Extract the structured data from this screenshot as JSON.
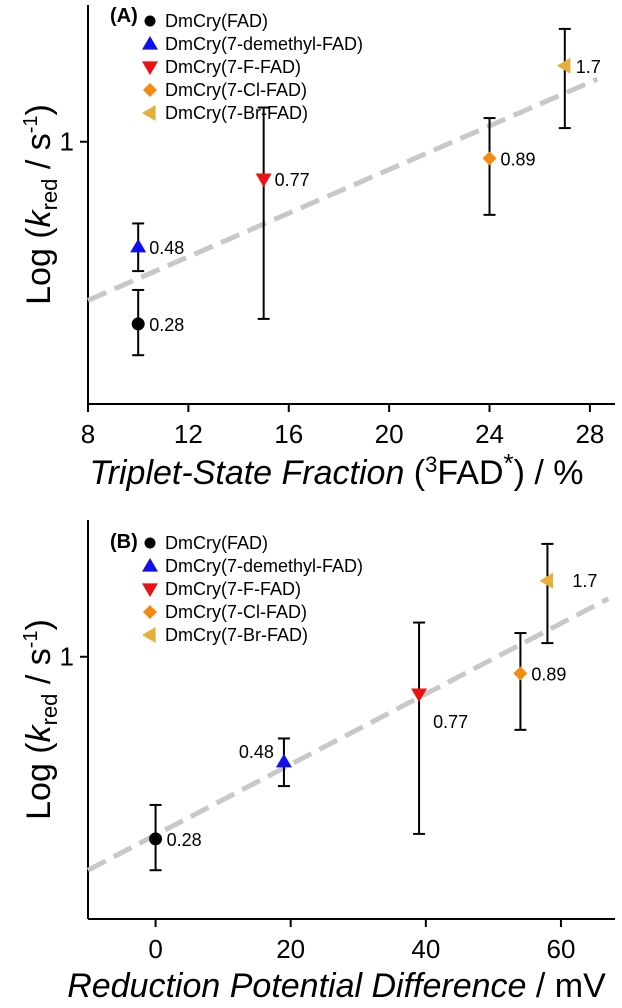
{
  "colors": {
    "fit_line": "#c8c8c8",
    "FAD": "#000000",
    "demethyl": "#1010ee",
    "F": "#ee1111",
    "Cl": "#f58a10",
    "Br": "#e5b03a"
  },
  "chart_data": [
    {
      "type": "scatter",
      "panel_label": "(A)",
      "xlabel_italic": "Triplet-State Fraction",
      "xlabel_rest_pre": " (",
      "xlabel_sup": "3",
      "xlabel_mid": "FAD",
      "xlabel_star": "*",
      "xlabel_suffix": ") / %",
      "ylabel_pre": "Log (",
      "ylabel_k": "k",
      "ylabel_sub": "red",
      "ylabel_mid": " / s",
      "ylabel_sup": "-1",
      "ylabel_post": ")",
      "xlim": [
        8,
        29
      ],
      "xticks": [
        8,
        12,
        16,
        20,
        24,
        28
      ],
      "ylim": [
        0.16,
        2.6
      ],
      "yticks": [
        1
      ],
      "ytick_labels": [
        "1"
      ],
      "yscale": "log",
      "legend_position": "top-center",
      "fit_line": [
        {
          "x": 8,
          "y": 0.33
        },
        {
          "x": 28.3,
          "y": 1.55
        }
      ],
      "series": [
        {
          "name": "DmCry(FAD)",
          "marker": "circle",
          "color_key": "FAD",
          "x": 10,
          "y": 0.28,
          "err_low": 0.225,
          "err_high": 0.355,
          "label": "0.28",
          "label_side": "right"
        },
        {
          "name": "DmCry(7-demethyl-FAD)",
          "marker": "triangle-up",
          "color_key": "demethyl",
          "x": 10,
          "y": 0.48,
          "err_low": 0.405,
          "err_high": 0.565,
          "label": "0.48",
          "label_side": "right"
        },
        {
          "name": "DmCry(7-F-FAD)",
          "marker": "triangle-down",
          "color_key": "F",
          "x": 15,
          "y": 0.77,
          "err_low": 0.29,
          "err_high": 1.27,
          "label": "0.77",
          "label_side": "right"
        },
        {
          "name": "DmCry(7-Cl-FAD)",
          "marker": "diamond",
          "color_key": "Cl",
          "x": 24,
          "y": 0.89,
          "err_low": 0.6,
          "err_high": 1.18,
          "label": "0.89",
          "label_side": "right"
        },
        {
          "name": "DmCry(7-Br-FAD)",
          "marker": "triangle-left",
          "color_key": "Br",
          "x": 27,
          "y": 1.7,
          "err_low": 1.1,
          "err_high": 2.2,
          "label": "1.7",
          "label_side": "right"
        }
      ]
    },
    {
      "type": "scatter",
      "panel_label": "(B)",
      "xlabel_italic": "Reduction Potential Difference",
      "xlabel_rest": " / mV",
      "ylabel_pre": "Log (",
      "ylabel_k": "k",
      "ylabel_sub": "red",
      "ylabel_mid": " / s",
      "ylabel_sup": "-1",
      "ylabel_post": ")",
      "xlim": [
        -10,
        68
      ],
      "xticks": [
        0,
        20,
        40,
        60
      ],
      "ylim": [
        0.16,
        2.6
      ],
      "yticks": [
        1
      ],
      "ytick_labels": [
        "1"
      ],
      "yscale": "log",
      "legend_position": "top-center",
      "fit_line": [
        {
          "x": -10,
          "y": 0.225
        },
        {
          "x": 67,
          "y": 1.5
        }
      ],
      "series": [
        {
          "name": "DmCry(FAD)",
          "marker": "circle",
          "color_key": "FAD",
          "x": 0,
          "y": 0.28,
          "err_low": 0.225,
          "err_high": 0.355,
          "label": "0.28",
          "label_side": "right"
        },
        {
          "name": "DmCry(7-demethyl-FAD)",
          "marker": "triangle-up",
          "color_key": "demethyl",
          "x": 19,
          "y": 0.48,
          "err_low": 0.405,
          "err_high": 0.565,
          "label": "0.48",
          "label_side": "left"
        },
        {
          "name": "DmCry(7-F-FAD)",
          "marker": "triangle-down",
          "color_key": "F",
          "x": 39,
          "y": 0.77,
          "err_low": 0.29,
          "err_high": 1.27,
          "label": "0.77",
          "label_side": "right-below"
        },
        {
          "name": "DmCry(7-Cl-FAD)",
          "marker": "diamond",
          "color_key": "Cl",
          "x": 54,
          "y": 0.89,
          "err_low": 0.6,
          "err_high": 1.18,
          "label": "0.89",
          "label_side": "right"
        },
        {
          "name": "DmCry(7-Br-FAD)",
          "marker": "triangle-left",
          "color_key": "Br",
          "x": 58,
          "y": 1.7,
          "err_low": 1.1,
          "err_high": 2.2,
          "label": "1.7",
          "label_side": "right-gap"
        }
      ]
    }
  ]
}
